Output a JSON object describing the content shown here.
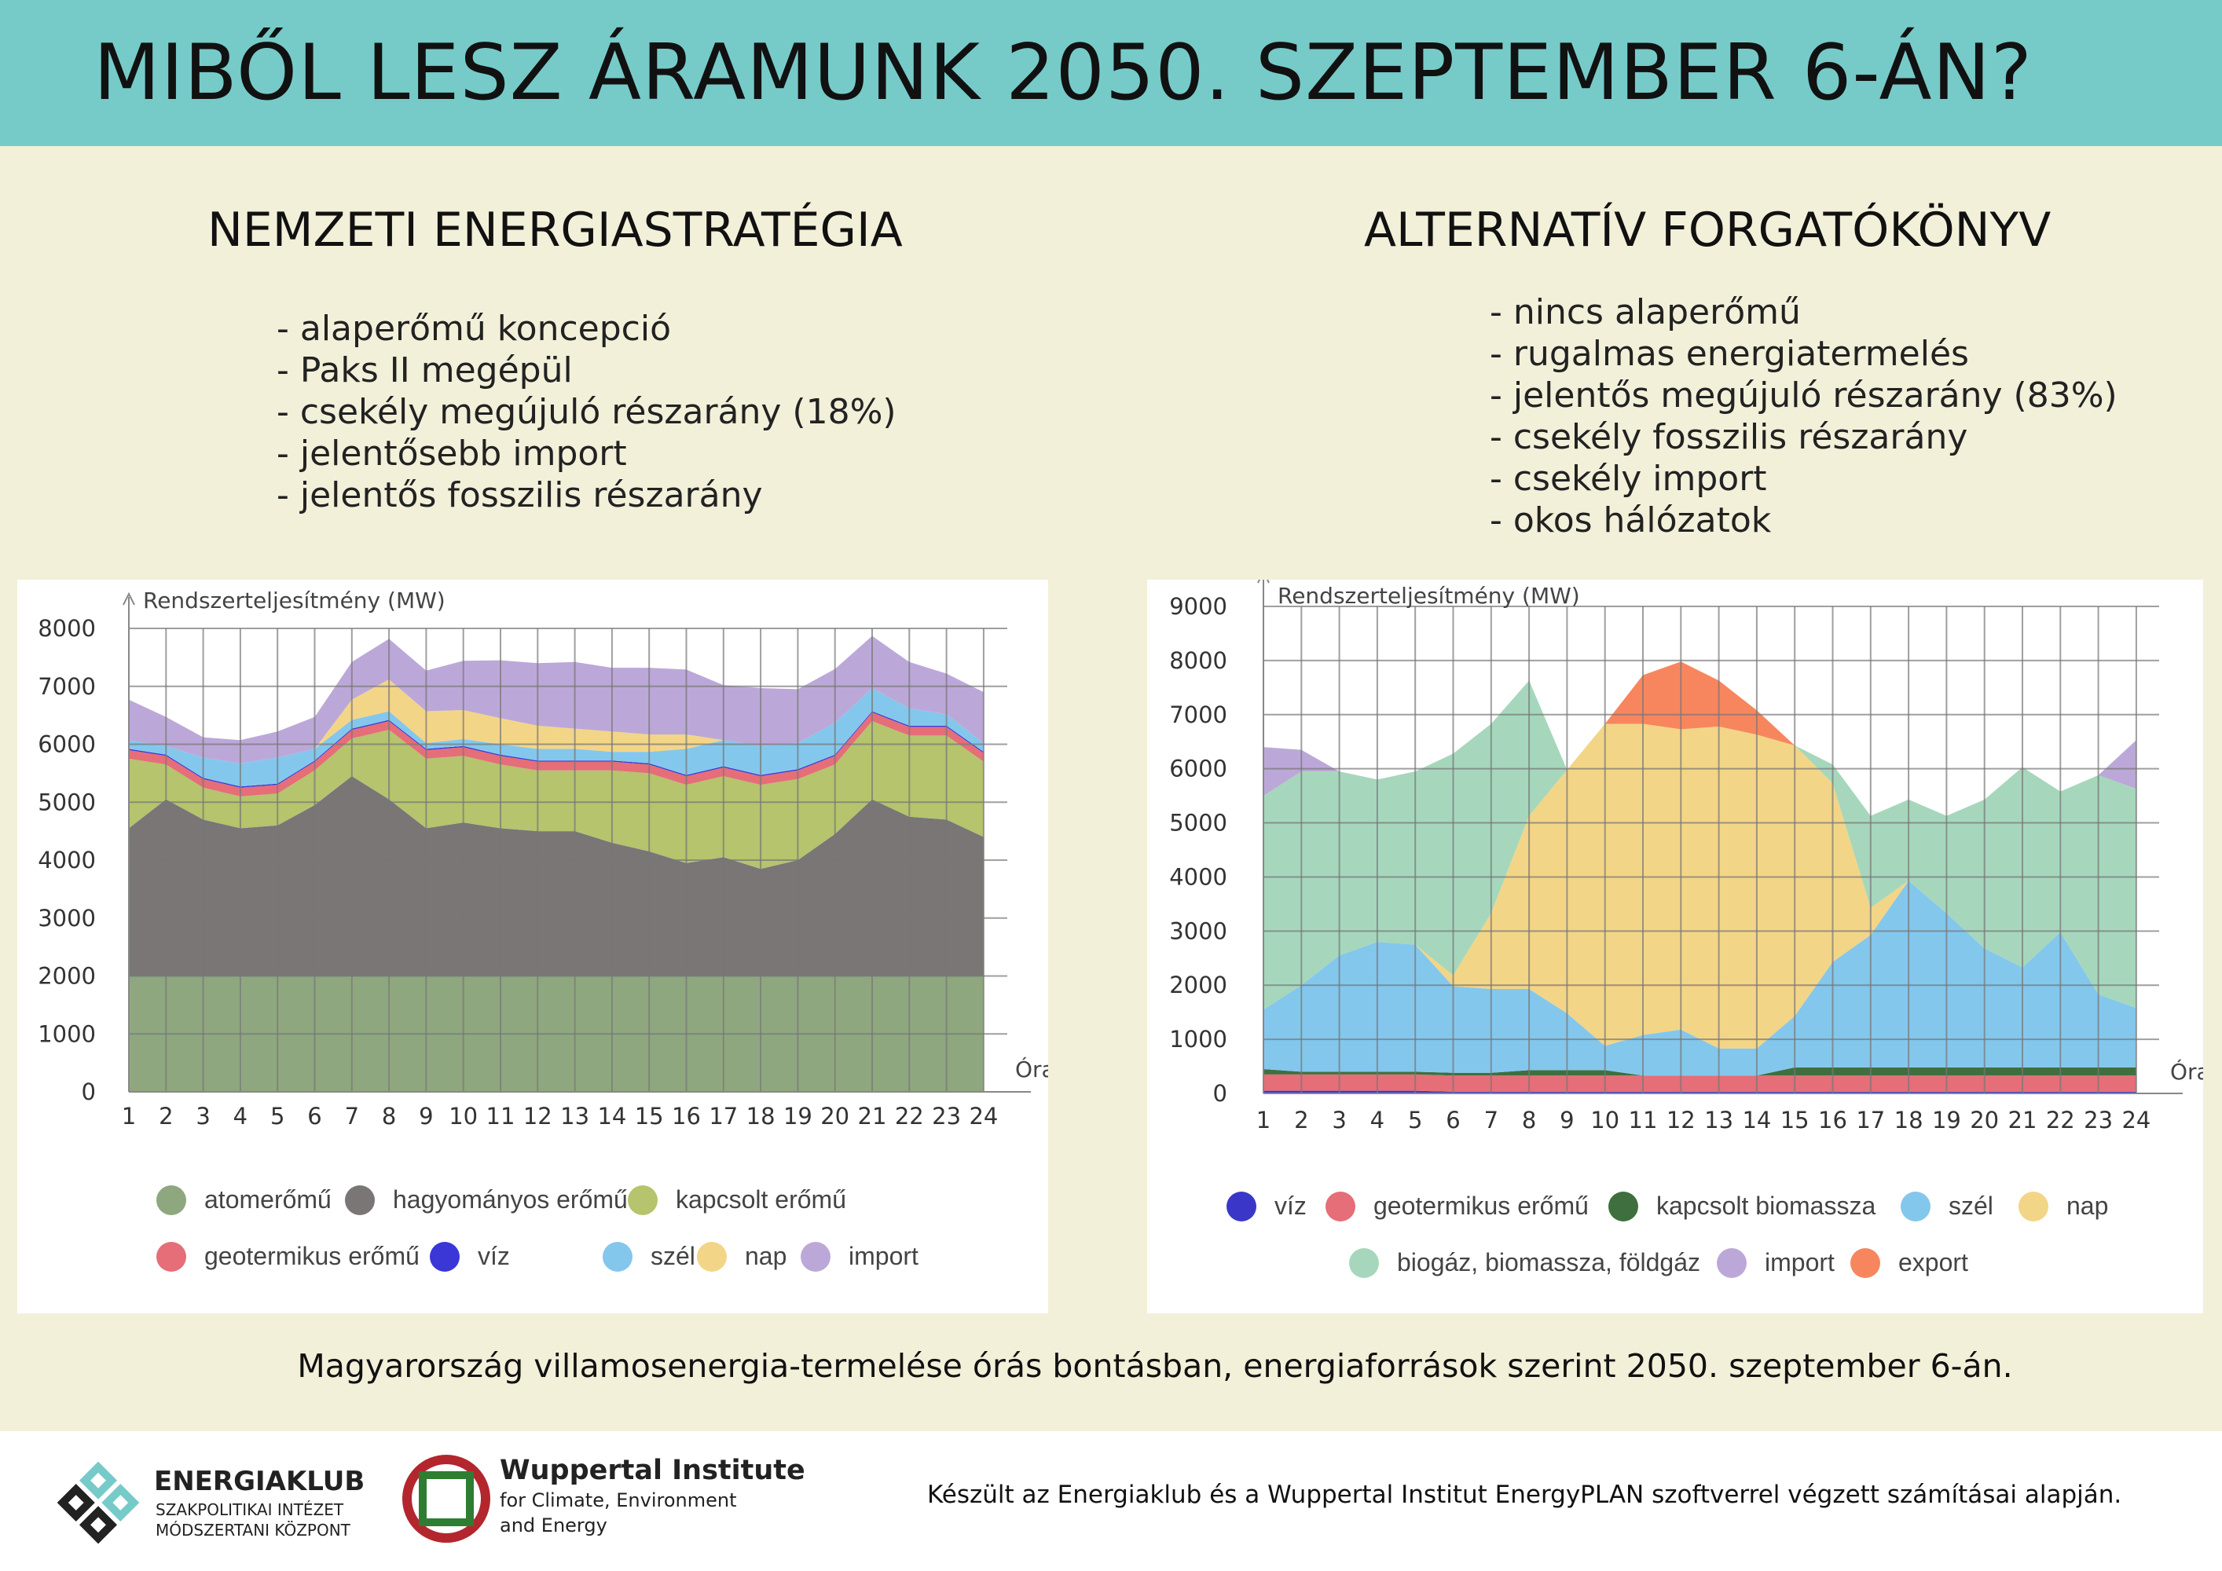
{
  "title": "MIBŐL LESZ ÁRAMUNK 2050. SZEPTEMBER 6-ÁN?",
  "left": {
    "subtitle": "NEMZETI ENERGIASTRATÉGIA",
    "bullets": [
      "- alaperőmű koncepció",
      "- Paks II megépül",
      "- csekély megújuló részarány (18%)",
      "- jelentősebb import",
      "- jelentős fosszilis részarány"
    ]
  },
  "right": {
    "subtitle": "ALTERNATÍV FORGATÓKÖNYV",
    "bullets": [
      "- nincs alaperőmű",
      "- rugalmas energiatermelés",
      "- jelentős megújuló részarány (83%)",
      "- csekély fosszilis részarány",
      "- csekély import",
      "- okos hálózatok"
    ]
  },
  "chart_data": [
    {
      "type": "area",
      "stacked": true,
      "ylabel": "Rendszerteljesítmény (MW)",
      "xlabel": "Óra",
      "ylim": [
        0,
        8000
      ],
      "yticks": [
        0,
        1000,
        2000,
        3000,
        4000,
        5000,
        6000,
        7000,
        8000
      ],
      "x": [
        1,
        2,
        3,
        4,
        5,
        6,
        7,
        8,
        9,
        10,
        11,
        12,
        13,
        14,
        15,
        16,
        17,
        18,
        19,
        20,
        21,
        22,
        23,
        24
      ],
      "grid": true,
      "legend": "bottom",
      "series": [
        {
          "name": "atomerőmű",
          "color": "#8fa77f",
          "values": [
            2000,
            2000,
            2000,
            2000,
            2000,
            2000,
            2000,
            2000,
            2000,
            2000,
            2000,
            2000,
            2000,
            2000,
            2000,
            2000,
            2000,
            2000,
            2000,
            2000,
            2000,
            2000,
            2000,
            2000
          ]
        },
        {
          "name": "hagyományos erőmű",
          "color": "#7a7676",
          "values": [
            2550,
            3050,
            2700,
            2550,
            2600,
            2950,
            3450,
            3050,
            2550,
            2650,
            2550,
            2500,
            2500,
            2300,
            2150,
            1950,
            2050,
            1850,
            2000,
            2450,
            3050,
            2750,
            2700,
            2400
          ]
        },
        {
          "name": "kapcsolt erőmű",
          "color": "#b5c46d",
          "values": [
            1200,
            600,
            550,
            550,
            550,
            600,
            650,
            1200,
            1200,
            1150,
            1100,
            1050,
            1050,
            1250,
            1350,
            1350,
            1400,
            1450,
            1400,
            1200,
            1350,
            1400,
            1450,
            1300
          ]
        },
        {
          "name": "geotermikus erőmű",
          "color": "#e56e78",
          "values": [
            150,
            150,
            150,
            150,
            150,
            150,
            150,
            150,
            150,
            150,
            150,
            150,
            150,
            150,
            150,
            150,
            150,
            150,
            150,
            150,
            150,
            150,
            150,
            150
          ]
        },
        {
          "name": "víz",
          "color": "#3a37d6",
          "values": [
            20,
            20,
            20,
            20,
            20,
            20,
            20,
            20,
            20,
            20,
            20,
            20,
            20,
            20,
            20,
            20,
            20,
            20,
            20,
            20,
            20,
            20,
            20,
            20
          ]
        },
        {
          "name": "szél",
          "color": "#84c7ec",
          "values": [
            150,
            150,
            350,
            400,
            450,
            200,
            150,
            150,
            100,
            120,
            180,
            200,
            200,
            150,
            200,
            450,
            450,
            500,
            450,
            550,
            400,
            300,
            200,
            150
          ]
        },
        {
          "name": "nap",
          "color": "#f3d587",
          "values": [
            0,
            0,
            0,
            0,
            0,
            0,
            350,
            550,
            550,
            500,
            450,
            400,
            350,
            350,
            300,
            250,
            0,
            0,
            0,
            0,
            0,
            0,
            0,
            0
          ]
        },
        {
          "name": "import",
          "color": "#bca8d8",
          "values": [
            700,
            500,
            350,
            400,
            450,
            550,
            650,
            700,
            700,
            850,
            1000,
            1080,
            1150,
            1100,
            1150,
            1120,
            950,
            1000,
            930,
            930,
            900,
            800,
            700,
            880
          ]
        }
      ]
    },
    {
      "type": "area",
      "stacked": true,
      "ylabel": "Rendszerteljesítmény (MW)",
      "xlabel": "Óra",
      "ylim": [
        0,
        9000
      ],
      "yticks": [
        0,
        1000,
        2000,
        3000,
        4000,
        5000,
        6000,
        7000,
        8000,
        9000
      ],
      "x": [
        1,
        2,
        3,
        4,
        5,
        6,
        7,
        8,
        9,
        10,
        11,
        12,
        13,
        14,
        15,
        16,
        17,
        18,
        19,
        20,
        21,
        22,
        23,
        24
      ],
      "grid": true,
      "legend": "bottom",
      "series": [
        {
          "name": "víz",
          "color": "#3a37c8",
          "values": [
            50,
            50,
            50,
            50,
            50,
            30,
            30,
            30,
            30,
            30,
            30,
            30,
            30,
            30,
            30,
            30,
            30,
            30,
            30,
            30,
            30,
            30,
            30,
            30
          ]
        },
        {
          "name": "geotermikus erőmű",
          "color": "#e56e78",
          "values": [
            300,
            300,
            300,
            300,
            300,
            300,
            300,
            300,
            300,
            300,
            300,
            300,
            300,
            300,
            300,
            300,
            300,
            300,
            300,
            300,
            300,
            300,
            300,
            300
          ]
        },
        {
          "name": "kapcsolt biomassza",
          "color": "#3f6f3f",
          "values": [
            100,
            50,
            50,
            50,
            50,
            50,
            50,
            100,
            100,
            100,
            0,
            0,
            0,
            0,
            150,
            150,
            150,
            150,
            150,
            150,
            150,
            150,
            150,
            150
          ]
        },
        {
          "name": "szél",
          "color": "#84c7ec",
          "values": [
            1100,
            1600,
            2150,
            2400,
            2350,
            1600,
            1550,
            1500,
            1050,
            450,
            750,
            850,
            500,
            500,
            950,
            1950,
            2450,
            3450,
            2850,
            2200,
            1850,
            2500,
            1350,
            1100
          ]
        },
        {
          "name": "nap",
          "color": "#f3d587",
          "values": [
            0,
            0,
            0,
            0,
            0,
            200,
            1400,
            3200,
            4500,
            5950,
            5750,
            5550,
            5950,
            5800,
            5000,
            3300,
            500,
            0,
            0,
            0,
            0,
            0,
            0,
            0
          ]
        },
        {
          "name": "biogáz, biomassza, földgáz",
          "color": "#a6d7bc",
          "values": [
            3950,
            3950,
            3400,
            3000,
            3200,
            4100,
            3500,
            2500,
            0,
            0,
            0,
            0,
            0,
            0,
            0,
            350,
            1700,
            1500,
            1800,
            2750,
            3700,
            2600,
            4050,
            4050
          ]
        },
        {
          "name": "import",
          "color": "#bca8d8",
          "values": [
            900,
            400,
            0,
            0,
            0,
            0,
            0,
            0,
            0,
            0,
            0,
            0,
            0,
            0,
            0,
            0,
            0,
            0,
            0,
            0,
            0,
            0,
            0,
            900
          ]
        },
        {
          "name": "export",
          "color": "#f7865e",
          "values": [
            0,
            0,
            0,
            0,
            0,
            0,
            0,
            0,
            0,
            0,
            900,
            1250,
            850,
            450,
            0,
            0,
            0,
            0,
            0,
            0,
            0,
            0,
            0,
            0
          ]
        }
      ]
    }
  ],
  "caption": "Magyarország villamosenergia-termelése órás bontásban, energiaforrások szerint 2050. szeptember 6-án.",
  "footer": {
    "energiaklub_name": "ENERGIAKLUB",
    "energiaklub_sub1": "SZAKPOLITIKAI INTÉZET",
    "energiaklub_sub2": "MÓDSZERTANI KÖZPONT",
    "wuppertal_name": "Wuppertal Institute",
    "wuppertal_sub1": "for Climate, Environment",
    "wuppertal_sub2": "and Energy",
    "credit": "Készült az Energiaklub és a Wuppertal Institut EnergyPLAN szoftverrel végzett számításai alapján."
  }
}
